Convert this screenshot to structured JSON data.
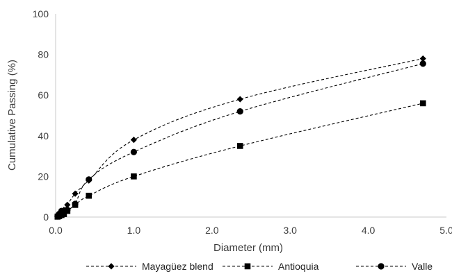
{
  "chart_data": {
    "type": "line",
    "title": "",
    "xlabel": "Diameter (mm)",
    "ylabel": "Cumulative Passing (%)",
    "xlim": [
      0,
      5
    ],
    "ylim": [
      0,
      100
    ],
    "x_ticks": [
      "0.0",
      "1.0",
      "2.0",
      "3.0",
      "4.0",
      "5.0"
    ],
    "y_ticks": [
      "0",
      "20",
      "40",
      "60",
      "80",
      "100"
    ],
    "grid": false,
    "legend_position": "bottom",
    "series": [
      {
        "name": "Mayagüez blend",
        "marker": "diamond",
        "color": "#000000",
        "x": [
          0.025,
          0.045,
          0.075,
          0.106,
          0.15,
          0.25,
          0.425,
          1.0,
          2.36,
          4.7
        ],
        "y": [
          0.3,
          1.0,
          2.0,
          3.5,
          6.0,
          11.5,
          18.0,
          38.0,
          58.0,
          78.0
        ]
      },
      {
        "name": "Antioquia",
        "marker": "square",
        "color": "#000000",
        "x": [
          0.025,
          0.045,
          0.075,
          0.106,
          0.15,
          0.25,
          0.425,
          1.0,
          2.36,
          4.7
        ],
        "y": [
          0.2,
          0.5,
          1.0,
          1.5,
          3.0,
          6.0,
          10.5,
          20.0,
          35.0,
          56.0
        ]
      },
      {
        "name": "Valle",
        "marker": "circle",
        "color": "#000000",
        "x": [
          0.025,
          0.045,
          0.075,
          0.106,
          0.15,
          0.25,
          0.425,
          1.0,
          2.36,
          4.7
        ],
        "y": [
          0.5,
          1.5,
          3.0,
          2.5,
          3.5,
          6.5,
          18.5,
          32.0,
          52.0,
          75.5
        ]
      }
    ]
  }
}
